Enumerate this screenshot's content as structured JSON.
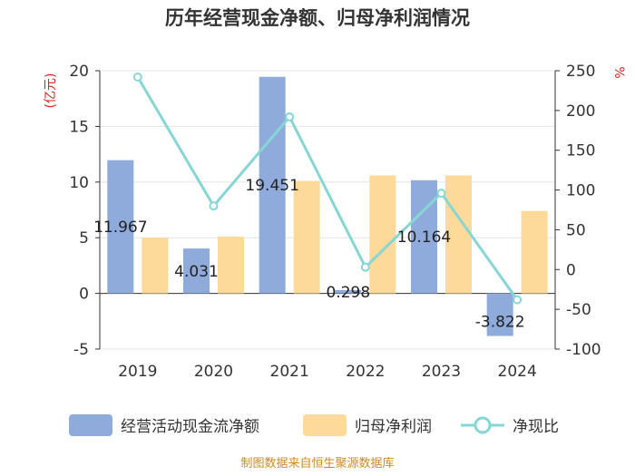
{
  "chart_data": {
    "type": "bar+line",
    "title": "历年经营现金净额、归母净利润情况",
    "categories": [
      "2019",
      "2020",
      "2021",
      "2022",
      "2023",
      "2024"
    ],
    "series": [
      {
        "name": "经营活动现金流净额",
        "type": "bar",
        "axis": "left",
        "color": "#8eabdc",
        "values": [
          11.967,
          4.031,
          19.451,
          0.298,
          10.164,
          -3.822
        ],
        "labels": [
          "11.967",
          "4.031",
          "19.451",
          "0.298",
          "10.164",
          "-3.822"
        ]
      },
      {
        "name": "归母净利润",
        "type": "bar",
        "axis": "left",
        "color": "#fdd99a",
        "values": [
          5.0,
          5.1,
          10.1,
          10.6,
          10.6,
          7.4
        ]
      },
      {
        "name": "净现比",
        "type": "line",
        "axis": "right",
        "color": "#86d6d4",
        "values": [
          242,
          80,
          192,
          3,
          96,
          -38
        ]
      }
    ],
    "left_axis": {
      "unit": "(亿元)",
      "ylim": [
        -5,
        20
      ],
      "ticks": [
        "20",
        "15",
        "10",
        "5",
        "0",
        "-5"
      ]
    },
    "right_axis": {
      "unit": "%",
      "ylim": [
        -100,
        250
      ],
      "ticks": [
        "250",
        "200",
        "150",
        "100",
        "50",
        "0",
        "-50",
        "-100"
      ]
    },
    "grid": true,
    "legend_position": "bottom"
  },
  "source": "制图数据来自恒生聚源数据库"
}
